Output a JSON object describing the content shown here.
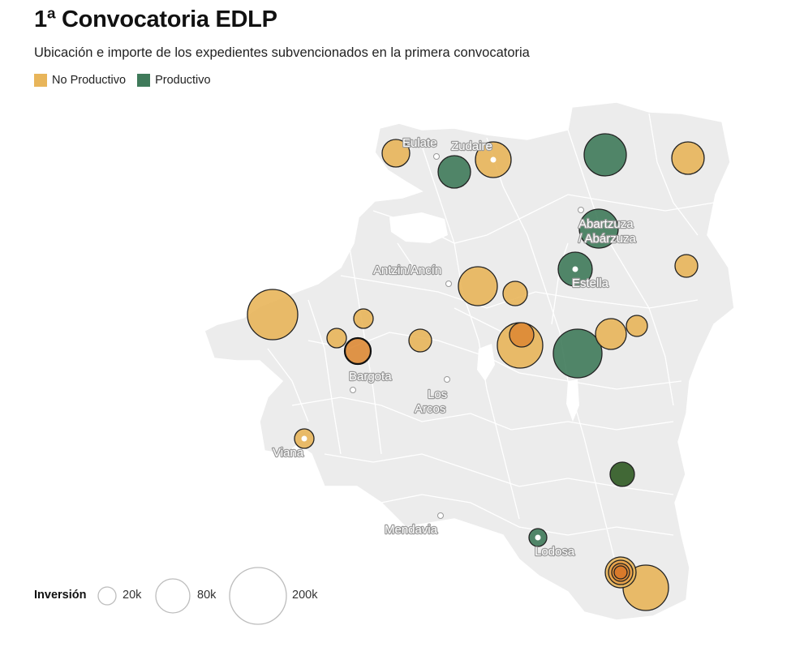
{
  "title": "1ª Convocatoria EDLP",
  "subtitle": "Ubicación e importe de los expedientes subvencionados en la primera convocatoria",
  "legend": {
    "no_productivo": {
      "label": "No Productivo",
      "color": "#e8b55a"
    },
    "productivo": {
      "label": "Productivo",
      "color": "#3f7a5a"
    }
  },
  "places": [
    {
      "name": "Eulate"
    },
    {
      "name": "Zudaire"
    },
    {
      "name": "Abartzuza / Abárzuza",
      "lines": [
        "Abartzuza",
        "/ Abárzuza"
      ]
    },
    {
      "name": "Antzin/Ancín"
    },
    {
      "name": "Estella"
    },
    {
      "name": "Bargota"
    },
    {
      "name": "Los Arcos",
      "lines": [
        "Los",
        "Arcos"
      ]
    },
    {
      "name": "Viana"
    },
    {
      "name": "Mendavia"
    },
    {
      "name": "Lodosa"
    }
  ],
  "size_legend": {
    "label": "Inversión",
    "sizes": [
      {
        "value": 20000,
        "label": "20k"
      },
      {
        "value": 80000,
        "label": "80k"
      },
      {
        "value": 200000,
        "label": "200k"
      }
    ]
  },
  "colors": {
    "no_productivo": "#e8b55a",
    "productivo": "#3f7a5a",
    "orange": "#dd8a35",
    "dark_green": "#2f5a22",
    "map_fill": "#ececec",
    "map_stroke": "#ffffff"
  }
}
